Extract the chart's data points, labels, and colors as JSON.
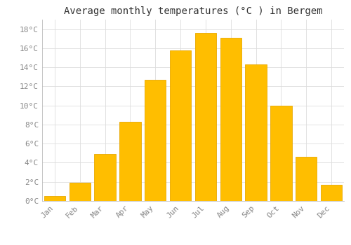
{
  "title": "Average monthly temperatures (°C ) in Bergem",
  "months": [
    "Jan",
    "Feb",
    "Mar",
    "Apr",
    "May",
    "Jun",
    "Jul",
    "Aug",
    "Sep",
    "Oct",
    "Nov",
    "Dec"
  ],
  "temperatures": [
    0.5,
    1.9,
    4.9,
    8.3,
    12.7,
    15.8,
    17.6,
    17.1,
    14.3,
    10.0,
    4.6,
    1.7
  ],
  "bar_color": "#FFBE00",
  "bar_edge_color": "#E8A800",
  "background_color": "#FFFFFF",
  "grid_color": "#DDDDDD",
  "text_color": "#888888",
  "ylim": [
    0,
    19
  ],
  "yticks": [
    0,
    2,
    4,
    6,
    8,
    10,
    12,
    14,
    16,
    18
  ],
  "title_fontsize": 10,
  "tick_fontsize": 8,
  "bar_width": 0.85
}
